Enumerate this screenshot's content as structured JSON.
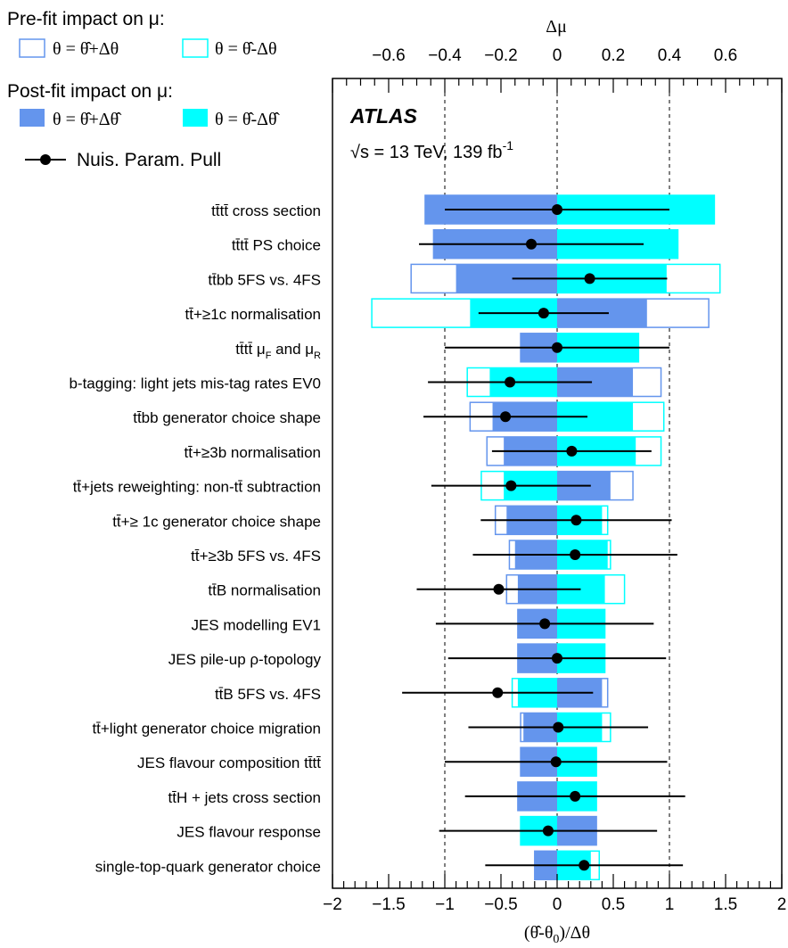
{
  "chart_data": {
    "type": "bar",
    "experiment": "ATLAS",
    "energy_label": "√s = 13 TeV, 139 fb",
    "lumi_exp": "-1",
    "top_axis": {
      "label": "Δμ",
      "range": [
        -0.8,
        0.8
      ],
      "ticks": [
        -0.6,
        -0.4,
        -0.2,
        0,
        0.2,
        0.4,
        0.6
      ],
      "tick_labels": [
        "−0.6",
        "−0.4",
        "−0.2",
        "0",
        "0.2",
        "0.4",
        "0.6"
      ]
    },
    "bottom_axis": {
      "label_pre": "(θ̂-θ",
      "label_sub": "0",
      "label_post": ")/Δθ",
      "range": [
        -2,
        2
      ],
      "ticks": [
        -2,
        -1.5,
        -1,
        -0.5,
        0,
        0.5,
        1,
        1.5,
        2
      ],
      "tick_labels": [
        "−2",
        "−1.5",
        "−1",
        "−0.5",
        "0",
        "0.5",
        "1",
        "1.5",
        "2"
      ]
    },
    "legend": {
      "prefit_title": "Pre-fit impact on μ:",
      "postfit_title": "Post-fit impact on μ:",
      "plus_label": "θ = θ̂+Δθ",
      "minus_label": "θ = θ̂-Δθ",
      "plus_label_post": "θ = θ̂+Δθ̂",
      "minus_label_post": "θ = θ̂-Δθ̂",
      "pull_label": "Nuis. Param. Pull"
    },
    "colors": {
      "plus": "#6495ED",
      "minus": "#00FFFF",
      "prefit_plus_edge": "#6495ED",
      "prefit_minus_edge": "#00FFFF"
    },
    "parameters": [
      {
        "label": "tt̄tt̄ cross section",
        "pull": 0.0,
        "err": 1.0,
        "pre_plus": -0.47,
        "pre_minus": 0.56,
        "post_plus": -0.47,
        "post_minus": 0.56
      },
      {
        "label": "tt̄tt̄ PS choice",
        "pull": -0.23,
        "err": 1.0,
        "pre_plus": -0.44,
        "pre_minus": 0.43,
        "post_plus": -0.44,
        "post_minus": 0.43
      },
      {
        "label": "tt̄bb 5FS vs. 4FS",
        "pull": 0.29,
        "err": 0.69,
        "pre_plus": -0.52,
        "pre_minus": 0.58,
        "post_plus": -0.36,
        "post_minus": 0.39
      },
      {
        "label": "tt̄+≥1c normalisation",
        "pull": -0.12,
        "err": 0.58,
        "pre_plus": 0.54,
        "pre_minus": -0.66,
        "post_plus": 0.32,
        "post_minus": -0.31
      },
      {
        "label": "tt̄tt̄ μ_F and μ_R",
        "pull": 0.0,
        "err": 1.0,
        "pre_plus": -0.13,
        "pre_minus": 0.29,
        "post_plus": -0.13,
        "post_minus": 0.29
      },
      {
        "label": "b-tagging: light jets mis-tag rates EV0",
        "pull": -0.42,
        "err": 0.73,
        "pre_plus": 0.37,
        "pre_minus": -0.32,
        "post_plus": 0.27,
        "post_minus": -0.24
      },
      {
        "label": "tt̄bb generator choice shape",
        "pull": -0.46,
        "err": 0.73,
        "pre_plus": -0.31,
        "pre_minus": 0.38,
        "post_plus": -0.23,
        "post_minus": 0.27
      },
      {
        "label": "tt̄+≥3b normalisation",
        "pull": 0.13,
        "err": 0.71,
        "pre_plus": -0.25,
        "pre_minus": 0.37,
        "post_plus": -0.19,
        "post_minus": 0.28
      },
      {
        "label": "tt̄+jets reweighting: non-tt̄ subtraction",
        "pull": -0.41,
        "err": 0.71,
        "pre_plus": 0.27,
        "pre_minus": -0.27,
        "post_plus": 0.19,
        "post_minus": -0.19
      },
      {
        "label": "tt̄+≥ 1c generator choice shape",
        "pull": 0.17,
        "err": 0.85,
        "pre_plus": -0.22,
        "pre_minus": 0.18,
        "post_plus": -0.18,
        "post_minus": 0.16
      },
      {
        "label": "tt̄+≥3b 5FS vs. 4FS",
        "pull": 0.16,
        "err": 0.91,
        "pre_plus": -0.17,
        "pre_minus": 0.19,
        "post_plus": -0.15,
        "post_minus": 0.18
      },
      {
        "label": "tt̄B normalisation",
        "pull": -0.52,
        "err": 0.73,
        "pre_plus": -0.18,
        "pre_minus": 0.24,
        "post_plus": -0.14,
        "post_minus": 0.17
      },
      {
        "label": "JES modelling EV1",
        "pull": -0.11,
        "err": 0.97,
        "pre_plus": -0.14,
        "pre_minus": 0.17,
        "post_plus": -0.14,
        "post_minus": 0.17
      },
      {
        "label": "JES pile-up ρ-topology",
        "pull": 0.0,
        "err": 0.97,
        "pre_plus": -0.14,
        "pre_minus": 0.17,
        "post_plus": -0.14,
        "post_minus": 0.17
      },
      {
        "label": "tt̄B 5FS vs. 4FS",
        "pull": -0.53,
        "err": 0.85,
        "pre_plus": 0.18,
        "pre_minus": -0.16,
        "post_plus": 0.16,
        "post_minus": -0.14
      },
      {
        "label": "tt̄+light generator choice migration",
        "pull": 0.01,
        "err": 0.8,
        "pre_plus": -0.13,
        "pre_minus": 0.19,
        "post_plus": -0.12,
        "post_minus": 0.16
      },
      {
        "label": "JES flavour composition tt̄tt̄",
        "pull": -0.01,
        "err": 0.99,
        "pre_plus": -0.13,
        "pre_minus": 0.14,
        "post_plus": -0.13,
        "post_minus": 0.14
      },
      {
        "label": "tt̄H + jets cross section",
        "pull": 0.16,
        "err": 0.98,
        "pre_plus": -0.14,
        "pre_minus": 0.14,
        "post_plus": -0.14,
        "post_minus": 0.14
      },
      {
        "label": "JES flavour response",
        "pull": -0.08,
        "err": 0.97,
        "pre_plus": 0.14,
        "pre_minus": -0.13,
        "post_plus": 0.14,
        "post_minus": -0.13
      },
      {
        "label": "single-top-quark generator choice",
        "pull": 0.24,
        "err": 0.88,
        "pre_plus": -0.08,
        "pre_minus": 0.15,
        "post_plus": -0.08,
        "post_minus": 0.12
      }
    ]
  }
}
